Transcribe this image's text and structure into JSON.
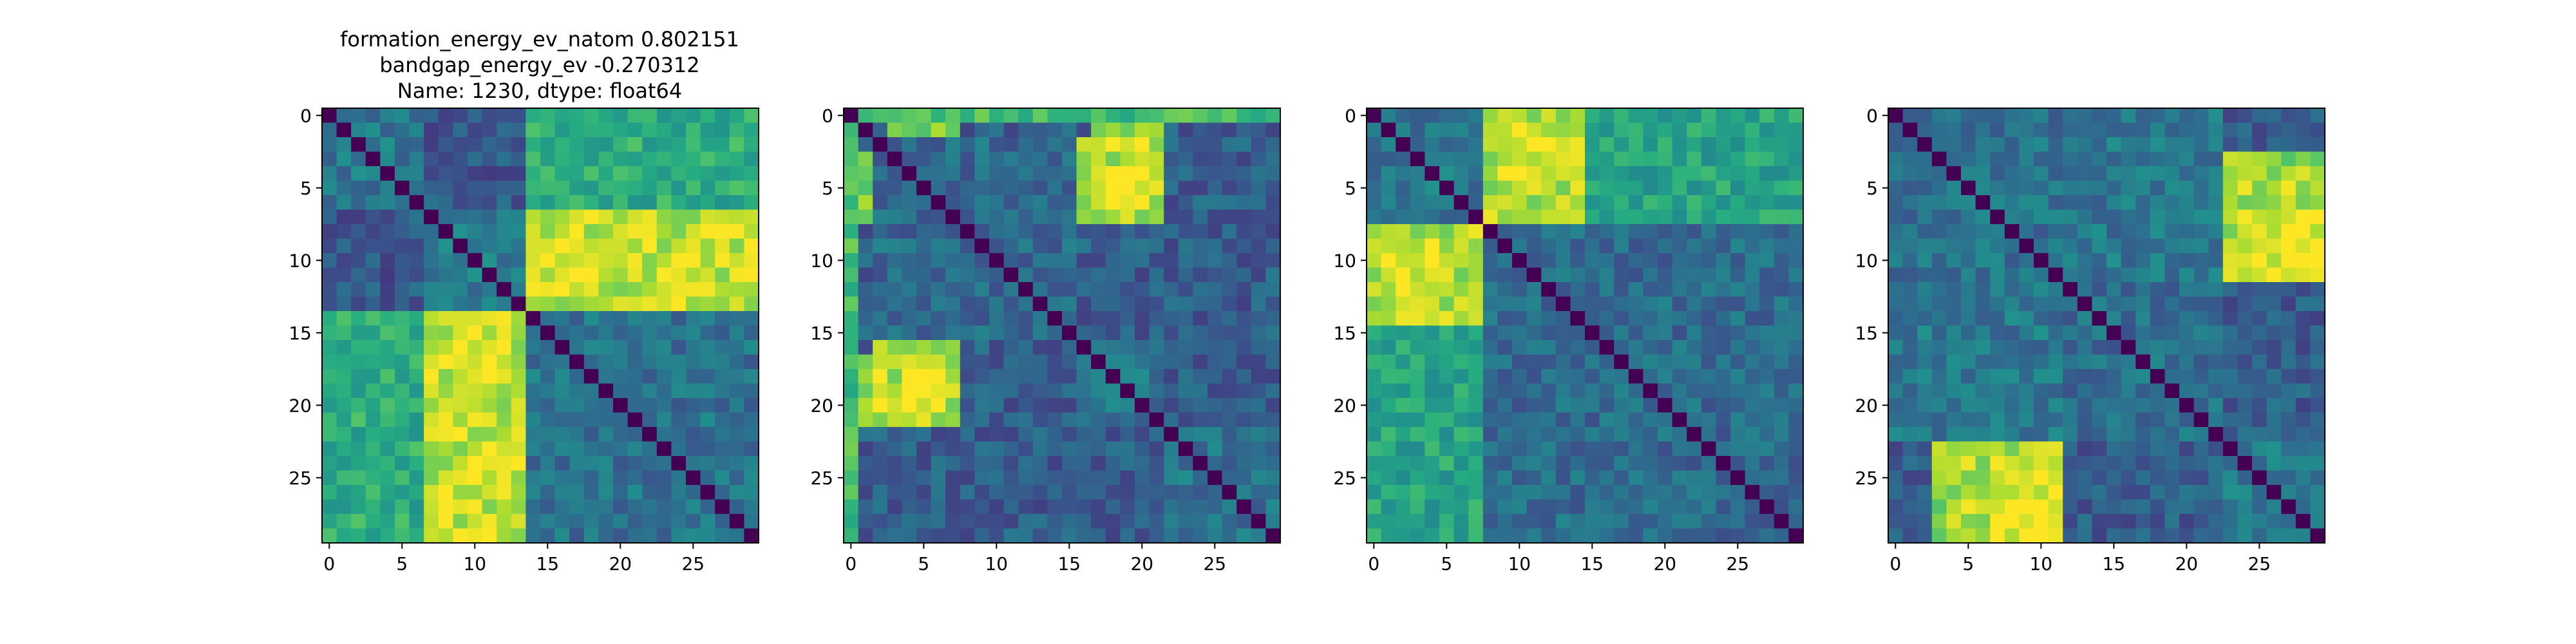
{
  "figure": {
    "title_lines": [
      "formation_energy_ev_natom    0.802151",
      "bandgap_energy_ev          -0.270312",
      "Name: 1230, dtype: float64"
    ]
  },
  "chart_data": [
    {
      "type": "heatmap",
      "colormap": "viridis",
      "size": 30,
      "xlim": [
        -0.5,
        29.5
      ],
      "ylim": [
        29.5,
        -0.5
      ],
      "xticks": [
        "0",
        "5",
        "10",
        "15",
        "20",
        "25"
      ],
      "yticks": [
        "0",
        "5",
        "10",
        "15",
        "20",
        "25"
      ],
      "blocks": [
        [
          0,
          6,
          0.4
        ],
        [
          7,
          13,
          0.42
        ],
        [
          14,
          29,
          0.38
        ]
      ],
      "cross": [
        [
          0,
          6,
          14,
          29,
          0.62
        ],
        [
          7,
          13,
          14,
          29,
          0.9
        ],
        [
          7,
          13,
          0,
          6,
          0.28
        ]
      ],
      "hot": [
        [
          15,
          18,
          9,
          11,
          0.98
        ],
        [
          9,
          12,
          14,
          18,
          0.95
        ]
      ],
      "diagonal": 0.0,
      "seed": 11
    },
    {
      "type": "heatmap",
      "colormap": "viridis",
      "size": 30,
      "xlim": [
        -0.5,
        29.5
      ],
      "ylim": [
        29.5,
        -0.5
      ],
      "xticks": [
        "0",
        "5",
        "10",
        "15",
        "20",
        "25"
      ],
      "yticks": [
        "0",
        "5",
        "10",
        "15",
        "20",
        "25"
      ],
      "blocks": [
        [
          0,
          1,
          0.55
        ],
        [
          2,
          15,
          0.35
        ],
        [
          16,
          21,
          0.4
        ],
        [
          22,
          29,
          0.38
        ]
      ],
      "cross": [
        [
          0,
          1,
          3,
          7,
          0.8
        ],
        [
          0,
          1,
          17,
          21,
          0.85
        ],
        [
          16,
          21,
          2,
          7,
          0.9
        ],
        [
          3,
          7,
          17,
          21,
          0.88
        ],
        [
          0,
          29,
          0,
          0,
          0.7
        ]
      ],
      "hot": [
        [
          18,
          20,
          4,
          6,
          0.98
        ],
        [
          4,
          6,
          18,
          20,
          0.97
        ]
      ],
      "diagonal": 0.0,
      "seed": 23
    },
    {
      "type": "heatmap",
      "colormap": "viridis",
      "size": 30,
      "xlim": [
        -0.5,
        29.5
      ],
      "ylim": [
        29.5,
        -0.5
      ],
      "xticks": [
        "0",
        "5",
        "10",
        "15",
        "20",
        "25"
      ],
      "yticks": [
        "0",
        "5",
        "10",
        "15",
        "20",
        "25"
      ],
      "blocks": [
        [
          0,
          7,
          0.4
        ],
        [
          8,
          29,
          0.35
        ]
      ],
      "cross": [
        [
          0,
          7,
          8,
          14,
          0.88
        ],
        [
          0,
          7,
          15,
          29,
          0.58
        ]
      ],
      "hot": [
        [
          9,
          12,
          1,
          4,
          0.97
        ],
        [
          1,
          4,
          9,
          12,
          0.96
        ]
      ],
      "diagonal": 0.0,
      "seed": 37
    },
    {
      "type": "heatmap",
      "colormap": "viridis",
      "size": 30,
      "xlim": [
        -0.5,
        29.5
      ],
      "ylim": [
        29.5,
        -0.5
      ],
      "xticks": [
        "0",
        "5",
        "10",
        "15",
        "20",
        "25"
      ],
      "yticks": [
        "0",
        "5",
        "10",
        "15",
        "20",
        "25"
      ],
      "blocks": [
        [
          0,
          11,
          0.38
        ],
        [
          12,
          22,
          0.36
        ],
        [
          23,
          29,
          0.42
        ]
      ],
      "cross": [
        [
          3,
          11,
          23,
          29,
          0.82
        ],
        [
          23,
          29,
          4,
          11,
          0.88
        ],
        [
          0,
          11,
          12,
          22,
          0.4
        ]
      ],
      "hot": [
        [
          9,
          11,
          24,
          27,
          0.98
        ],
        [
          26,
          29,
          7,
          11,
          0.97
        ]
      ],
      "diagonal": 0.0,
      "seed": 53
    }
  ]
}
